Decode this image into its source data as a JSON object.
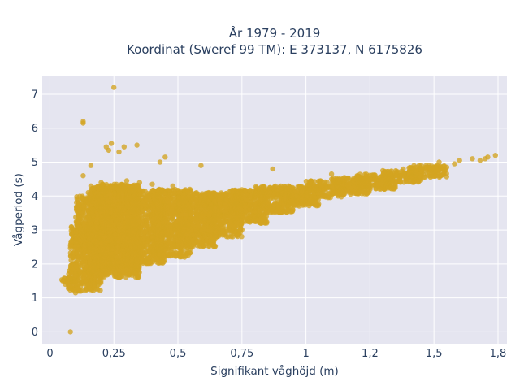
{
  "chart_data": {
    "type": "scatter",
    "title_line1": "År 1979 - 2019",
    "title_line2": "Koordinat (Sweref 99 TM): E 373137, N 6175826",
    "xlabel": "Signifikant våghöjd (m)",
    "ylabel": "Vågperiod (s)",
    "xlim": [
      -0.03,
      1.785
    ],
    "ylim": [
      -0.35,
      7.55
    ],
    "x_ticks": [
      {
        "value": 0,
        "label": "0"
      },
      {
        "value": 0.25,
        "label": "0,25"
      },
      {
        "value": 0.5,
        "label": "0,5"
      },
      {
        "value": 0.75,
        "label": "0,75"
      },
      {
        "value": 1,
        "label": "1"
      },
      {
        "value": 1.25,
        "label": "1,2"
      },
      {
        "value": 1.5,
        "label": "1,5"
      },
      {
        "value": 1.75,
        "label": "1,8"
      }
    ],
    "y_ticks": [
      {
        "value": 0,
        "label": "0"
      },
      {
        "value": 1,
        "label": "1"
      },
      {
        "value": 2,
        "label": "2"
      },
      {
        "value": 3,
        "label": "3"
      },
      {
        "value": 4,
        "label": "4"
      },
      {
        "value": 5,
        "label": "5"
      },
      {
        "value": 6,
        "label": "6"
      },
      {
        "value": 7,
        "label": "7"
      }
    ],
    "grid": true,
    "colors": {
      "marker": "#d4a420",
      "plot_bg": "#e5e5f0",
      "grid": "#ffffff",
      "text": "#2a3f5f"
    },
    "series": [
      {
        "points": [
          [
            0.08,
            0.0
          ],
          [
            0.25,
            7.2
          ],
          [
            0.13,
            6.2
          ],
          [
            0.13,
            6.15
          ],
          [
            0.22,
            5.45
          ],
          [
            0.23,
            5.35
          ],
          [
            0.24,
            5.55
          ],
          [
            0.27,
            5.3
          ],
          [
            0.29,
            5.45
          ],
          [
            0.34,
            5.5
          ],
          [
            0.45,
            5.15
          ],
          [
            0.43,
            5.0
          ],
          [
            0.59,
            4.9
          ],
          [
            0.87,
            4.8
          ],
          [
            0.16,
            4.9
          ],
          [
            0.13,
            4.6
          ],
          [
            1.1,
            4.65
          ],
          [
            1.2,
            4.6
          ],
          [
            1.3,
            4.75
          ],
          [
            1.38,
            4.8
          ],
          [
            1.45,
            4.9
          ],
          [
            1.52,
            5.0
          ],
          [
            1.55,
            4.85
          ],
          [
            1.58,
            4.95
          ],
          [
            1.6,
            5.05
          ],
          [
            1.65,
            5.1
          ],
          [
            1.68,
            5.05
          ],
          [
            1.7,
            5.1
          ],
          [
            1.71,
            5.15
          ],
          [
            1.74,
            5.2
          ],
          [
            1.45,
            4.75
          ],
          [
            1.35,
            4.65
          ],
          [
            0.05,
            1.5
          ],
          [
            0.06,
            1.4
          ],
          [
            0.07,
            1.55
          ],
          [
            0.1,
            1.15
          ],
          [
            0.12,
            1.2
          ],
          [
            0.09,
            2.2
          ],
          [
            0.1,
            2.8
          ],
          [
            0.11,
            3.2
          ],
          [
            0.13,
            3.5
          ],
          [
            0.14,
            3.9
          ],
          [
            0.16,
            4.3
          ],
          [
            0.15,
            4.1
          ],
          [
            0.2,
            4.4
          ],
          [
            0.3,
            4.45
          ],
          [
            0.35,
            4.4
          ],
          [
            0.4,
            4.35
          ],
          [
            0.48,
            4.3
          ],
          [
            0.55,
            4.1
          ],
          [
            0.62,
            4.1
          ],
          [
            0.68,
            4.05
          ]
        ],
        "bands": [
          {
            "x": [
              0.045,
              0.11
            ],
            "y": [
              1.45,
              1.6
            ]
          },
          {
            "x": [
              0.07,
              0.2
            ],
            "y": [
              1.2,
              1.8
            ]
          },
          {
            "x": [
              0.08,
              0.2
            ],
            "y": [
              1.8,
              3.2
            ]
          },
          {
            "x": [
              0.1,
              0.2
            ],
            "y": [
              2.5,
              4.0
            ]
          },
          {
            "x": [
              0.15,
              0.35
            ],
            "y": [
              1.6,
              4.3
            ]
          },
          {
            "x": [
              0.2,
              0.35
            ],
            "y": [
              1.8,
              4.35
            ]
          },
          {
            "x": [
              0.3,
              0.45
            ],
            "y": [
              2.0,
              4.2
            ]
          },
          {
            "x": [
              0.4,
              0.55
            ],
            "y": [
              2.2,
              4.2
            ]
          },
          {
            "x": [
              0.5,
              0.65
            ],
            "y": [
              2.5,
              4.1
            ]
          },
          {
            "x": [
              0.6,
              0.75
            ],
            "y": [
              2.8,
              4.1
            ]
          },
          {
            "x": [
              0.7,
              0.85
            ],
            "y": [
              3.2,
              4.2
            ]
          },
          {
            "x": [
              0.8,
              0.95
            ],
            "y": [
              3.5,
              4.3
            ]
          },
          {
            "x": [
              0.9,
              1.05
            ],
            "y": [
              3.7,
              4.3
            ]
          },
          {
            "x": [
              1.0,
              1.15
            ],
            "y": [
              3.95,
              4.45
            ]
          },
          {
            "x": [
              1.1,
              1.25
            ],
            "y": [
              4.05,
              4.55
            ]
          },
          {
            "x": [
              1.2,
              1.35
            ],
            "y": [
              4.2,
              4.65
            ]
          },
          {
            "x": [
              1.3,
              1.45
            ],
            "y": [
              4.4,
              4.75
            ]
          },
          {
            "x": [
              1.4,
              1.55
            ],
            "y": [
              4.55,
              4.9
            ]
          }
        ]
      }
    ]
  }
}
